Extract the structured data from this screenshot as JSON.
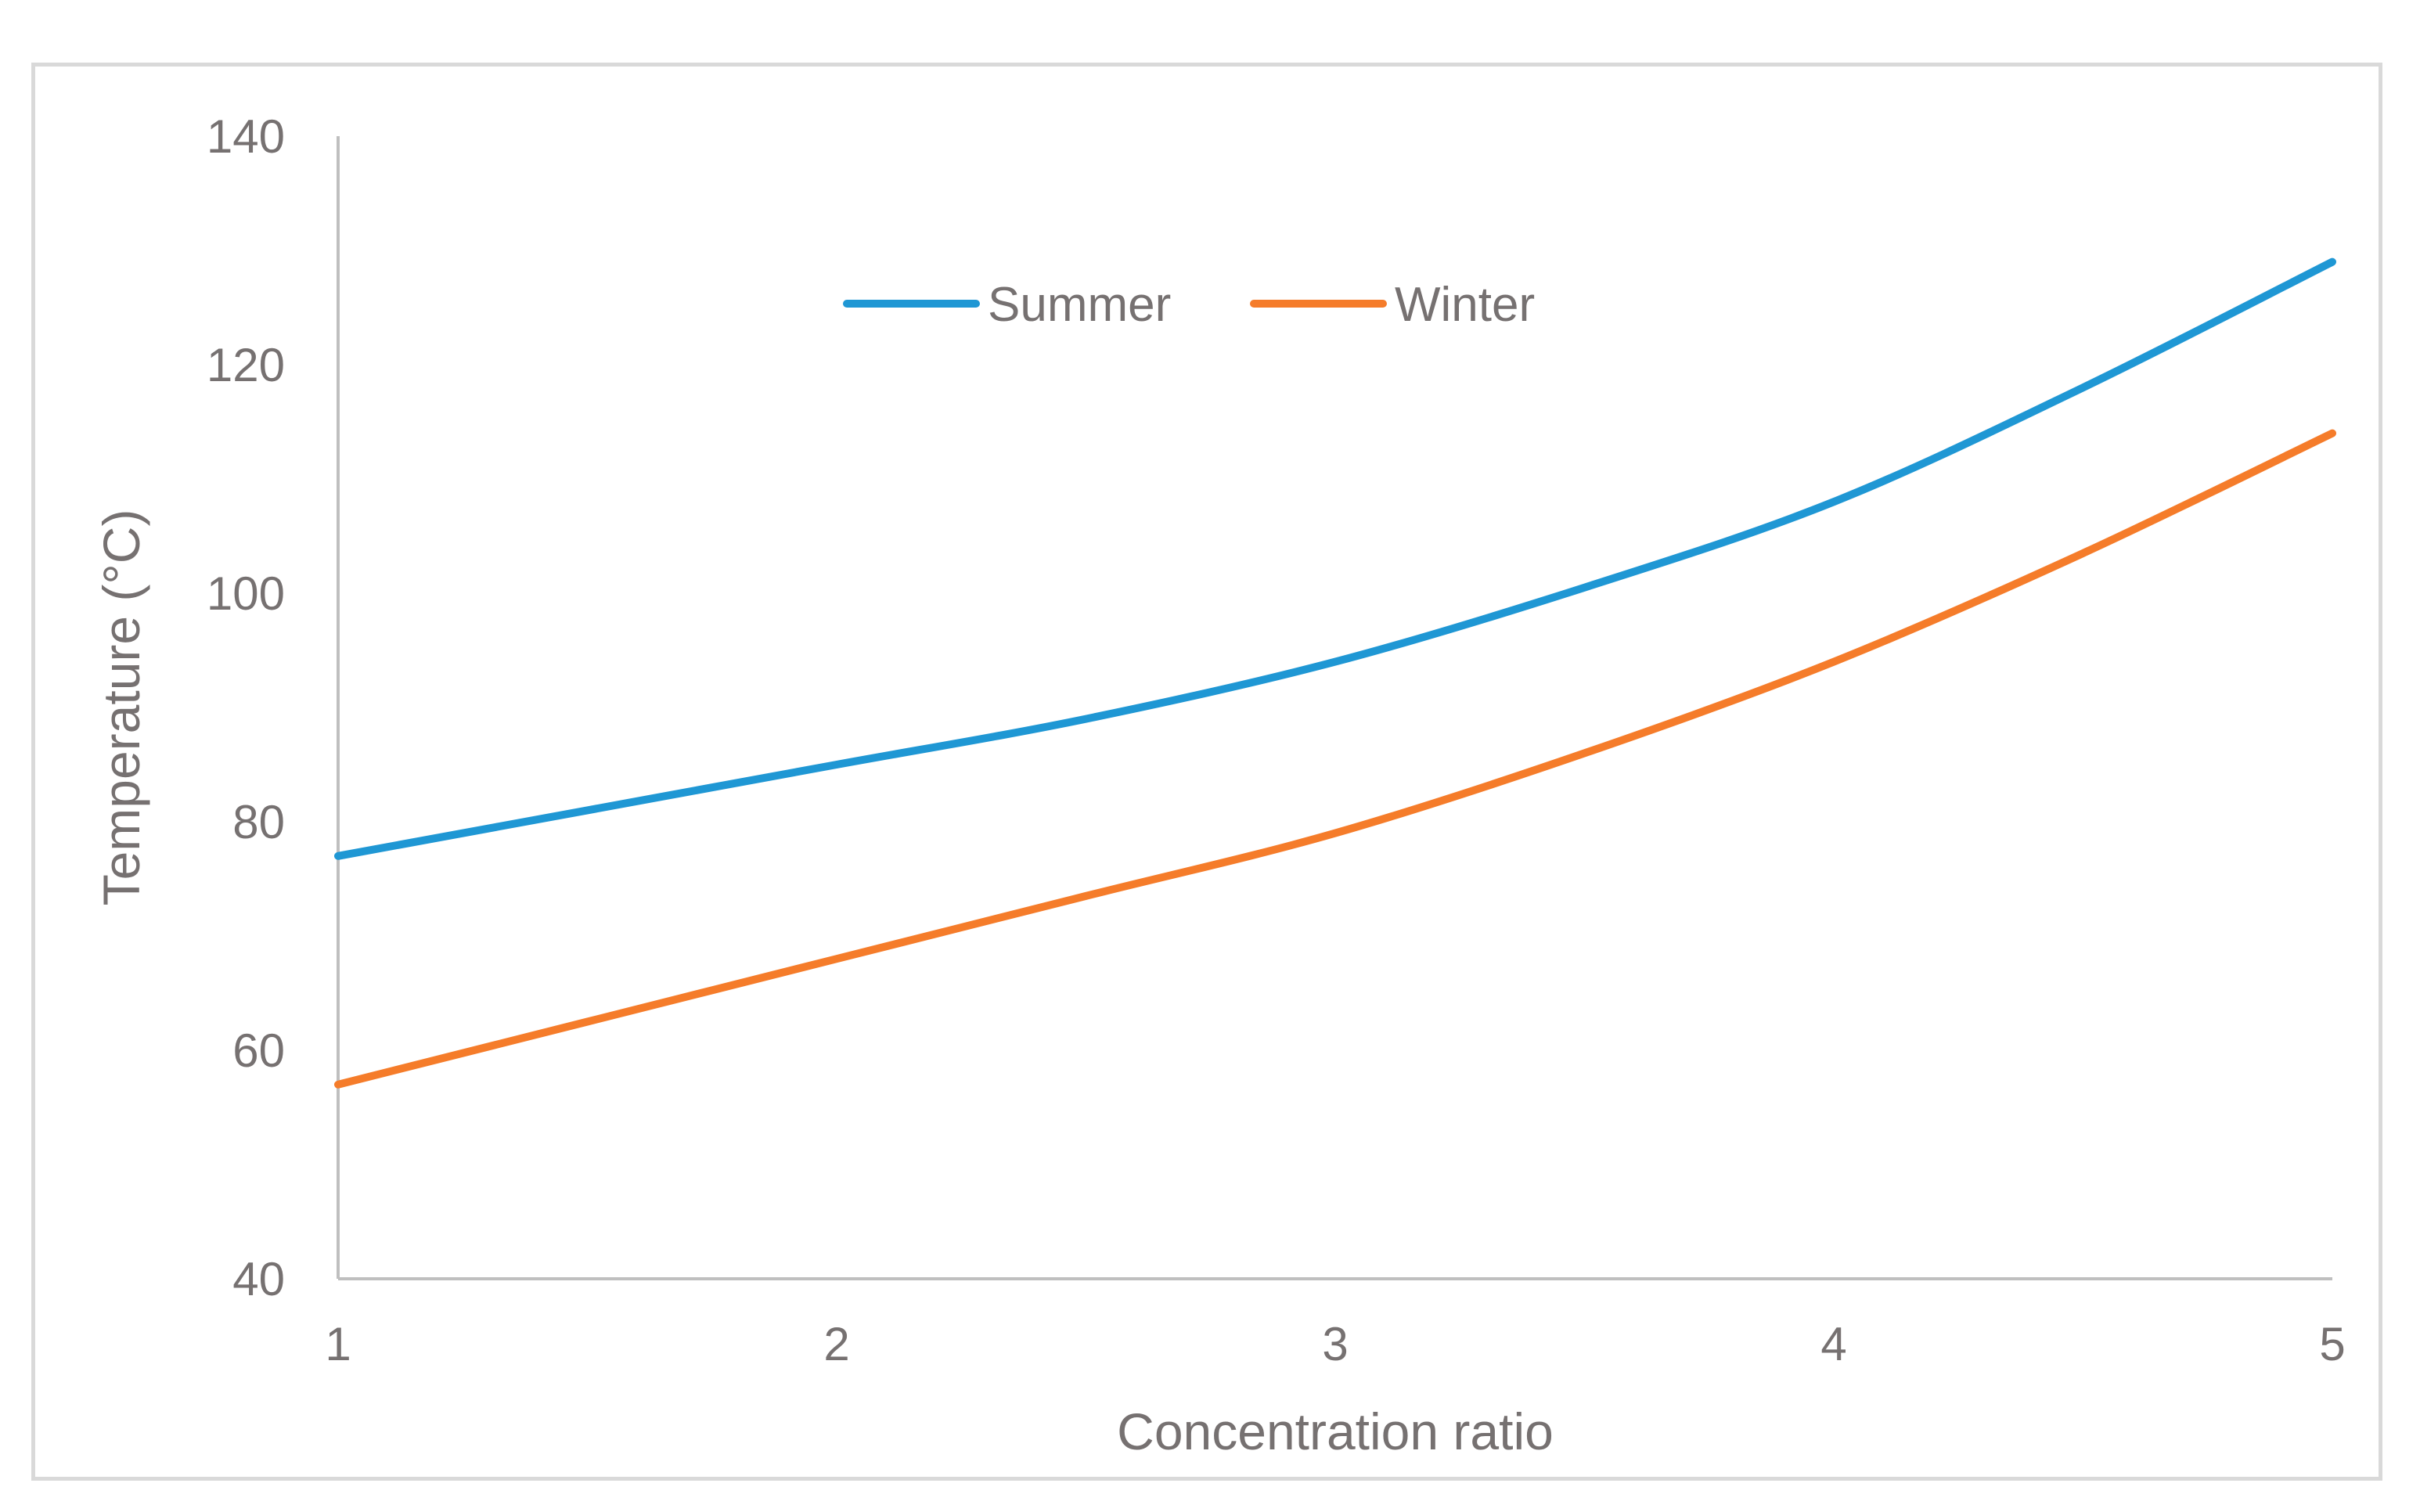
{
  "chart_data": {
    "type": "line",
    "title": "",
    "xlabel": "Concentration ratio",
    "ylabel": "Temperature (°C)",
    "xlim": [
      1,
      5
    ],
    "ylim": [
      40,
      140
    ],
    "x_ticks": [
      "1",
      "2",
      "3",
      "4",
      "5"
    ],
    "y_ticks": [
      "40",
      "60",
      "80",
      "100",
      "120",
      "140"
    ],
    "grid": false,
    "legend_position": "top-center",
    "x": [
      1,
      1.5,
      2,
      2.5,
      3,
      3.5,
      4,
      4.5,
      5
    ],
    "series": [
      {
        "name": "Summer",
        "color": "#1f97d4",
        "values": [
          77,
          81,
          85,
          89,
          94,
          100.5,
          108,
          118,
          129
        ]
      },
      {
        "name": "Winter",
        "color": "#f57c2a",
        "values": [
          57,
          62.5,
          68,
          73.5,
          79,
          86,
          94,
          103.5,
          114
        ]
      }
    ]
  }
}
